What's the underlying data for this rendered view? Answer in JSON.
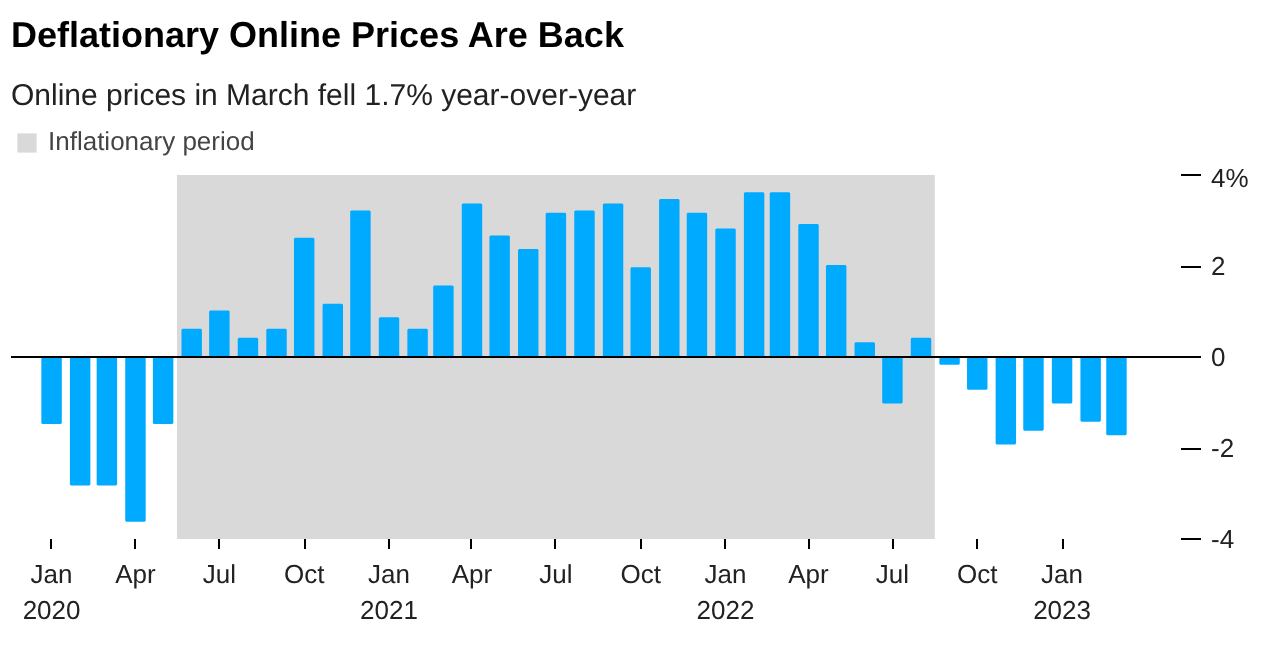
{
  "chart_data": {
    "type": "bar",
    "title": "Deflationary Online Prices Are Back",
    "subtitle": "Online prices in March fell 1.7% year-over-year",
    "x": [
      "2020-01",
      "2020-02",
      "2020-03",
      "2020-04",
      "2020-05",
      "2020-06",
      "2020-07",
      "2020-08",
      "2020-09",
      "2020-10",
      "2020-11",
      "2020-12",
      "2021-01",
      "2021-02",
      "2021-03",
      "2021-04",
      "2021-05",
      "2021-06",
      "2021-07",
      "2021-08",
      "2021-09",
      "2021-10",
      "2021-11",
      "2021-12",
      "2022-01",
      "2022-02",
      "2022-03",
      "2022-04",
      "2022-05",
      "2022-06",
      "2022-07",
      "2022-08",
      "2022-09",
      "2022-10",
      "2022-11",
      "2022-12",
      "2023-01",
      "2023-02",
      "2023-03"
    ],
    "series": [
      {
        "color": "#00aaff",
        "values": [
          -1.45,
          -2.8,
          -2.8,
          -3.6,
          -1.45,
          0.6,
          1.0,
          0.4,
          0.6,
          2.6,
          1.15,
          3.2,
          0.85,
          0.6,
          1.55,
          3.35,
          2.65,
          2.35,
          3.15,
          3.2,
          3.35,
          1.95,
          3.45,
          3.15,
          2.8,
          3.6,
          3.6,
          2.9,
          2.0,
          0.3,
          -1.0,
          0.4,
          -0.15,
          -0.7,
          -1.9,
          -1.6,
          -1.0,
          -1.4,
          -1.7
        ]
      }
    ],
    "xlim": [
      "2019-11-18",
      "2023-05-10"
    ],
    "xticks": [
      {
        "value": "2020-01",
        "label": "Jan\n2020"
      },
      {
        "value": "2020-04",
        "label": "Apr"
      },
      {
        "value": "2020-07",
        "label": "Jul"
      },
      {
        "value": "2020-10",
        "label": "Oct"
      },
      {
        "value": "2021-01",
        "label": "Jan\n2021"
      },
      {
        "value": "2021-04",
        "label": "Apr"
      },
      {
        "value": "2021-07",
        "label": "Jul"
      },
      {
        "value": "2021-10",
        "label": "Oct"
      },
      {
        "value": "2022-01",
        "label": "Jan\n2022"
      },
      {
        "value": "2022-04",
        "label": "Apr"
      },
      {
        "value": "2022-07",
        "label": "Jul"
      },
      {
        "value": "2022-10",
        "label": "Oct"
      },
      {
        "value": "2023-01",
        "label": "Jan\n2023"
      }
    ],
    "ylim": [
      -4,
      4
    ],
    "yticks": [
      -4,
      -2,
      0,
      2,
      {
        "value": 4,
        "label": "4%"
      }
    ],
    "bands": [
      {
        "axis": "x",
        "from": "2020-05-16",
        "to": "2022-08-16",
        "label": "Inflationary period",
        "color": "#d9d9d9"
      }
    ],
    "ref_lines": [
      {
        "axis": "y",
        "value": 0,
        "color": "#000000"
      }
    ],
    "grid": false,
    "legend": "top left"
  }
}
